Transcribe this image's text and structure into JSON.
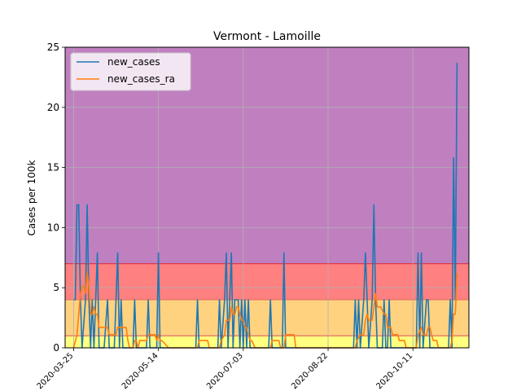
{
  "chart_data": {
    "type": "line",
    "title": "Vermont - Lamoille",
    "xlabel": "",
    "ylabel": "Cases per 100k",
    "ylim": [
      0,
      25
    ],
    "yticks": [
      "0",
      "5",
      "10",
      "15",
      "20",
      "25"
    ],
    "xlim": [
      "2020-03-20",
      "2020-11-13"
    ],
    "xticks": [
      "2020-03-25",
      "2020-05-14",
      "2020-07-03",
      "2020-08-22",
      "2020-10-11"
    ],
    "grid": true,
    "legend_position": "top-left",
    "bands": [
      {
        "from": 0,
        "to": 1,
        "color": "#ffff80"
      },
      {
        "from": 1,
        "to": 4,
        "color": "#ffd280"
      },
      {
        "from": 4,
        "to": 7,
        "color": "#ff8080"
      },
      {
        "from": 7,
        "to": 25,
        "color": "#c080c0"
      }
    ],
    "series": [
      {
        "name": "new_cases",
        "color": "#1f77b4",
        "points": [
          [
            "2020-03-25",
            4
          ],
          [
            "2020-03-26",
            4
          ],
          [
            "2020-03-27",
            11.9
          ],
          [
            "2020-03-28",
            11.9
          ],
          [
            "2020-03-29",
            4
          ],
          [
            "2020-03-30",
            0
          ],
          [
            "2020-04-01",
            4
          ],
          [
            "2020-04-02",
            11.9
          ],
          [
            "2020-04-03",
            4
          ],
          [
            "2020-04-04",
            0
          ],
          [
            "2020-04-05",
            4
          ],
          [
            "2020-04-06",
            0
          ],
          [
            "2020-04-08",
            7.9
          ],
          [
            "2020-04-09",
            0
          ],
          [
            "2020-04-12",
            0
          ],
          [
            "2020-04-14",
            4
          ],
          [
            "2020-04-15",
            0
          ],
          [
            "2020-04-18",
            0
          ],
          [
            "2020-04-20",
            7.9
          ],
          [
            "2020-04-21",
            0
          ],
          [
            "2020-04-22",
            4
          ],
          [
            "2020-04-23",
            0
          ],
          [
            "2020-04-29",
            0
          ],
          [
            "2020-04-30",
            4
          ],
          [
            "2020-05-01",
            0
          ],
          [
            "2020-05-07",
            0
          ],
          [
            "2020-05-08",
            4
          ],
          [
            "2020-05-09",
            0
          ],
          [
            "2020-05-13",
            0
          ],
          [
            "2020-05-14",
            7.9
          ],
          [
            "2020-05-15",
            0
          ],
          [
            "2020-06-05",
            0
          ],
          [
            "2020-06-06",
            4
          ],
          [
            "2020-06-07",
            0
          ],
          [
            "2020-06-18",
            0
          ],
          [
            "2020-06-19",
            4
          ],
          [
            "2020-06-20",
            0
          ],
          [
            "2020-06-22",
            4
          ],
          [
            "2020-06-23",
            7.9
          ],
          [
            "2020-06-24",
            0
          ],
          [
            "2020-06-26",
            7.9
          ],
          [
            "2020-06-27",
            0
          ],
          [
            "2020-06-28",
            4
          ],
          [
            "2020-06-29",
            4
          ],
          [
            "2020-06-30",
            4
          ],
          [
            "2020-07-01",
            0
          ],
          [
            "2020-07-02",
            4
          ],
          [
            "2020-07-03",
            0
          ],
          [
            "2020-07-04",
            4
          ],
          [
            "2020-07-05",
            0
          ],
          [
            "2020-07-06",
            4
          ],
          [
            "2020-07-07",
            0
          ],
          [
            "2020-07-18",
            0
          ],
          [
            "2020-07-19",
            4
          ],
          [
            "2020-07-20",
            0
          ],
          [
            "2020-07-26",
            0
          ],
          [
            "2020-07-27",
            7.9
          ],
          [
            "2020-07-28",
            0
          ],
          [
            "2020-09-06",
            0
          ],
          [
            "2020-09-07",
            4
          ],
          [
            "2020-09-08",
            0
          ],
          [
            "2020-09-09",
            4
          ],
          [
            "2020-09-10",
            0
          ],
          [
            "2020-09-12",
            4
          ],
          [
            "2020-09-13",
            7.9
          ],
          [
            "2020-09-14",
            4
          ],
          [
            "2020-09-15",
            0
          ],
          [
            "2020-09-17",
            4
          ],
          [
            "2020-09-18",
            11.9
          ],
          [
            "2020-09-19",
            4
          ],
          [
            "2020-09-20",
            0
          ],
          [
            "2020-09-23",
            0
          ],
          [
            "2020-09-24",
            4
          ],
          [
            "2020-09-25",
            0
          ],
          [
            "2020-09-26",
            0
          ],
          [
            "2020-09-27",
            4
          ],
          [
            "2020-09-28",
            0
          ],
          [
            "2020-10-13",
            0
          ],
          [
            "2020-10-14",
            7.9
          ],
          [
            "2020-10-15",
            0
          ],
          [
            "2020-10-16",
            7.9
          ],
          [
            "2020-10-17",
            0
          ],
          [
            "2020-10-19",
            4
          ],
          [
            "2020-10-20",
            4
          ],
          [
            "2020-10-21",
            0
          ],
          [
            "2020-11-01",
            0
          ],
          [
            "2020-11-02",
            4
          ],
          [
            "2020-11-03",
            0
          ],
          [
            "2020-11-04",
            15.8
          ],
          [
            "2020-11-05",
            4
          ],
          [
            "2020-11-06",
            23.7
          ]
        ]
      },
      {
        "name": "new_cases_ra",
        "color": "#ff7f0e",
        "points": [
          [
            "2020-03-25",
            0
          ],
          [
            "2020-03-27",
            1.1
          ],
          [
            "2020-03-28",
            2.8
          ],
          [
            "2020-03-29",
            4.5
          ],
          [
            "2020-03-30",
            5.1
          ],
          [
            "2020-03-31",
            5.1
          ],
          [
            "2020-04-01",
            4.5
          ],
          [
            "2020-04-02",
            6.2
          ],
          [
            "2020-04-03",
            5.1
          ],
          [
            "2020-04-04",
            2.8
          ],
          [
            "2020-04-05",
            2.8
          ],
          [
            "2020-04-06",
            3.4
          ],
          [
            "2020-04-07",
            2.8
          ],
          [
            "2020-04-08",
            2.8
          ],
          [
            "2020-04-09",
            1.7
          ],
          [
            "2020-04-10",
            1.7
          ],
          [
            "2020-04-12",
            1.7
          ],
          [
            "2020-04-14",
            1.7
          ],
          [
            "2020-04-15",
            1.1
          ],
          [
            "2020-04-17",
            1.1
          ],
          [
            "2020-04-19",
            1.1
          ],
          [
            "2020-04-20",
            1.7
          ],
          [
            "2020-04-22",
            1.7
          ],
          [
            "2020-04-24",
            1.7
          ],
          [
            "2020-04-25",
            1.7
          ],
          [
            "2020-04-26",
            0.6
          ],
          [
            "2020-04-27",
            0
          ],
          [
            "2020-04-29",
            0
          ],
          [
            "2020-04-30",
            0.6
          ],
          [
            "2020-05-01",
            0.6
          ],
          [
            "2020-05-02",
            0
          ],
          [
            "2020-05-03",
            0.6
          ],
          [
            "2020-05-07",
            0.6
          ],
          [
            "2020-05-08",
            1.1
          ],
          [
            "2020-05-10",
            1.1
          ],
          [
            "2020-05-12",
            1.1
          ],
          [
            "2020-05-13",
            0.6
          ],
          [
            "2020-05-14",
            1.1
          ],
          [
            "2020-05-15",
            0.6
          ],
          [
            "2020-05-16",
            0.6
          ],
          [
            "2020-05-20",
            0
          ],
          [
            "2020-06-06",
            0
          ],
          [
            "2020-06-07",
            0.6
          ],
          [
            "2020-06-12",
            0.6
          ],
          [
            "2020-06-13",
            0
          ],
          [
            "2020-06-19",
            0
          ],
          [
            "2020-06-20",
            0.6
          ],
          [
            "2020-06-22",
            1.1
          ],
          [
            "2020-06-23",
            2.3
          ],
          [
            "2020-06-25",
            2.3
          ],
          [
            "2020-06-26",
            3.4
          ],
          [
            "2020-06-27",
            2.8
          ],
          [
            "2020-06-28",
            2.8
          ],
          [
            "2020-06-29",
            3.4
          ],
          [
            "2020-06-30",
            3.4
          ],
          [
            "2020-07-01",
            2.8
          ],
          [
            "2020-07-02",
            2.3
          ],
          [
            "2020-07-03",
            2.3
          ],
          [
            "2020-07-04",
            1.7
          ],
          [
            "2020-07-05",
            1.7
          ],
          [
            "2020-07-06",
            1.1
          ],
          [
            "2020-07-07",
            0.6
          ],
          [
            "2020-07-08",
            0.6
          ],
          [
            "2020-07-10",
            0
          ],
          [
            "2020-07-19",
            0
          ],
          [
            "2020-07-20",
            0.6
          ],
          [
            "2020-07-24",
            0.6
          ],
          [
            "2020-07-25",
            0
          ],
          [
            "2020-07-27",
            0
          ],
          [
            "2020-07-28",
            1.1
          ],
          [
            "2020-08-02",
            1.1
          ],
          [
            "2020-08-03",
            0
          ],
          [
            "2020-09-07",
            0
          ],
          [
            "2020-09-08",
            0.6
          ],
          [
            "2020-09-10",
            1.1
          ],
          [
            "2020-09-12",
            1.1
          ],
          [
            "2020-09-13",
            2.3
          ],
          [
            "2020-09-14",
            2.8
          ],
          [
            "2020-09-15",
            2.3
          ],
          [
            "2020-09-17",
            2.3
          ],
          [
            "2020-09-18",
            3.4
          ],
          [
            "2020-09-19",
            4.5
          ],
          [
            "2020-09-20",
            3.4
          ],
          [
            "2020-09-22",
            3.4
          ],
          [
            "2020-09-24",
            2.8
          ],
          [
            "2020-09-25",
            2.8
          ],
          [
            "2020-09-26",
            1.7
          ],
          [
            "2020-09-28",
            1.7
          ],
          [
            "2020-09-29",
            1.1
          ],
          [
            "2020-10-02",
            1.1
          ],
          [
            "2020-10-03",
            0.6
          ],
          [
            "2020-10-06",
            0.6
          ],
          [
            "2020-10-07",
            0
          ],
          [
            "2020-10-13",
            0
          ],
          [
            "2020-10-14",
            1.1
          ],
          [
            "2020-10-16",
            1.7
          ],
          [
            "2020-10-17",
            1.1
          ],
          [
            "2020-10-19",
            1.1
          ],
          [
            "2020-10-20",
            1.7
          ],
          [
            "2020-10-21",
            1.7
          ],
          [
            "2020-10-22",
            1.1
          ],
          [
            "2020-10-23",
            0.6
          ],
          [
            "2020-10-25",
            0.6
          ],
          [
            "2020-10-26",
            0
          ],
          [
            "2020-11-02",
            0
          ],
          [
            "2020-11-03",
            0.6
          ],
          [
            "2020-11-04",
            2.8
          ],
          [
            "2020-11-05",
            2.8
          ],
          [
            "2020-11-06",
            6.2
          ]
        ]
      }
    ]
  }
}
